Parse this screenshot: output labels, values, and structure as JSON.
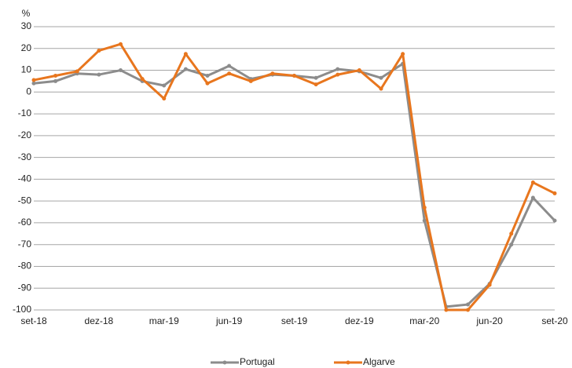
{
  "chart_data": {
    "type": "line",
    "y_label": "%",
    "categories": [
      "set-18",
      null,
      null,
      "dez-18",
      null,
      null,
      "mar-19",
      null,
      null,
      "jun-19",
      null,
      null,
      "set-19",
      null,
      null,
      "dez-19",
      null,
      null,
      "mar-20",
      null,
      null,
      "jun-20",
      null,
      null,
      "set-20"
    ],
    "series": [
      {
        "name": "Portugal",
        "color": "#8c8c8c",
        "values": [
          4,
          5,
          8.5,
          8,
          10,
          5,
          3,
          10.5,
          7.5,
          12,
          6,
          8,
          7.5,
          6.5,
          10.5,
          9.5,
          6.5,
          13,
          -59,
          -98.5,
          -97.5,
          -88,
          -70,
          -48.5,
          -59
        ]
      },
      {
        "name": "Algarve",
        "color": "#e8761e",
        "values": [
          5.5,
          7.5,
          9.5,
          19,
          22,
          6,
          -3,
          17.5,
          4,
          8.5,
          5,
          8.5,
          7.5,
          3.5,
          8,
          10,
          1.5,
          17.5,
          -53,
          -100,
          -100,
          -88.5,
          -65,
          -41.5,
          -46.5
        ]
      }
    ],
    "ylim": [
      -100,
      30
    ],
    "yticks": [
      -100,
      -90,
      -80,
      -70,
      -60,
      -50,
      -40,
      -30,
      -20,
      -10,
      0,
      10,
      20,
      30
    ],
    "grid": true,
    "legend": "bottom"
  }
}
